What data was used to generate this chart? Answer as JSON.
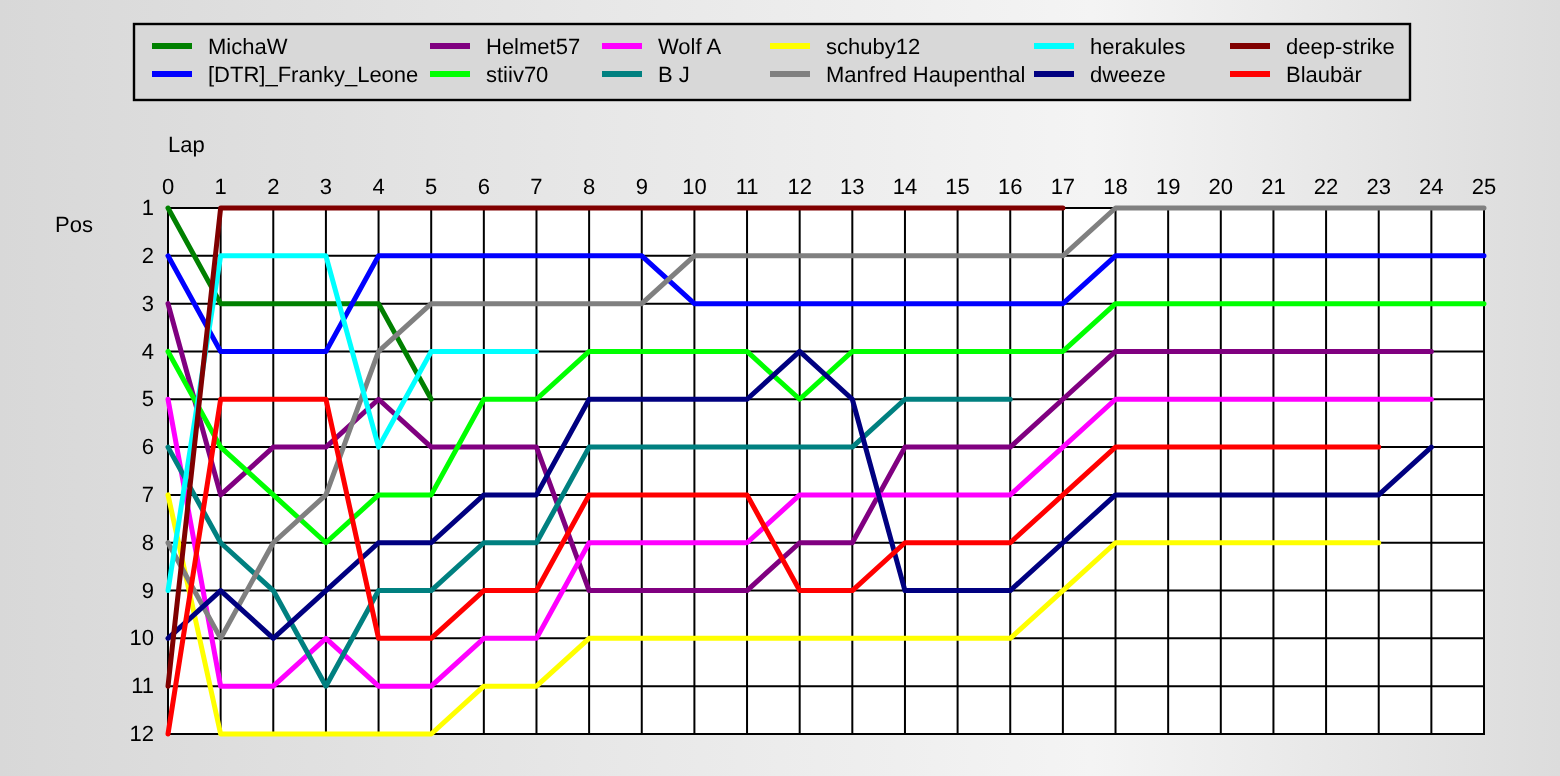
{
  "chart_data": {
    "type": "line",
    "xlabel": "Lap",
    "ylabel": "Pos",
    "x": [
      0,
      1,
      2,
      3,
      4,
      5,
      6,
      7,
      8,
      9,
      10,
      11,
      12,
      13,
      14,
      15,
      16,
      17,
      18,
      19,
      20,
      21,
      22,
      23,
      24,
      25
    ],
    "xlim": [
      0,
      25
    ],
    "xticks": [
      0,
      1,
      2,
      3,
      4,
      5,
      6,
      7,
      8,
      9,
      10,
      11,
      12,
      13,
      14,
      15,
      16,
      17,
      18,
      19,
      20,
      21,
      22,
      23,
      24,
      25
    ],
    "ylim": [
      12,
      1
    ],
    "yticks": [
      1,
      2,
      3,
      4,
      5,
      6,
      7,
      8,
      9,
      10,
      11,
      12
    ],
    "grid": true,
    "legend": "top",
    "marker": "none",
    "line_style": "solid",
    "series": [
      {
        "name": "MichaW",
        "color": "#008000",
        "values": [
          1,
          3,
          3,
          3,
          3,
          5,
          null,
          null,
          null,
          null,
          null,
          null,
          null,
          null,
          null,
          null,
          null,
          null,
          null,
          null,
          null,
          null,
          null,
          null,
          null,
          null
        ]
      },
      {
        "name": "[DTR]_Franky_Leone",
        "color": "#0000ff",
        "values": [
          2,
          4,
          4,
          4,
          2,
          2,
          2,
          2,
          2,
          2,
          3,
          3,
          3,
          3,
          3,
          3,
          3,
          3,
          2,
          2,
          2,
          2,
          2,
          2,
          2,
          2
        ]
      },
      {
        "name": "Helmet57",
        "color": "#800080",
        "values": [
          3,
          7,
          6,
          6,
          5,
          6,
          6,
          6,
          9,
          9,
          9,
          9,
          8,
          8,
          6,
          6,
          6,
          5,
          4,
          4,
          4,
          4,
          4,
          4,
          4,
          null
        ]
      },
      {
        "name": "stiiv70",
        "color": "#00ff00",
        "values": [
          4,
          6,
          7,
          8,
          7,
          7,
          5,
          5,
          4,
          4,
          4,
          4,
          5,
          4,
          4,
          4,
          4,
          4,
          3,
          3,
          3,
          3,
          3,
          3,
          3,
          3
        ]
      },
      {
        "name": "Wolf A",
        "color": "#ff00ff",
        "values": [
          5,
          11,
          11,
          10,
          11,
          11,
          10,
          10,
          8,
          8,
          8,
          8,
          7,
          7,
          7,
          7,
          7,
          6,
          5,
          5,
          5,
          5,
          5,
          5,
          5,
          null
        ]
      },
      {
        "name": "B J",
        "color": "#008080",
        "values": [
          6,
          8,
          9,
          11,
          9,
          9,
          8,
          8,
          6,
          6,
          6,
          6,
          6,
          6,
          5,
          5,
          5,
          null,
          null,
          null,
          null,
          null,
          null,
          null,
          null,
          null
        ]
      },
      {
        "name": "schuby12",
        "color": "#ffff00",
        "values": [
          7,
          12,
          12,
          12,
          12,
          12,
          11,
          11,
          10,
          10,
          10,
          10,
          10,
          10,
          10,
          10,
          10,
          9,
          8,
          8,
          8,
          8,
          8,
          8,
          null,
          null
        ]
      },
      {
        "name": "Manfred Haupenthal",
        "color": "#808080",
        "values": [
          8,
          10,
          8,
          7,
          4,
          3,
          3,
          3,
          3,
          3,
          2,
          2,
          2,
          2,
          2,
          2,
          2,
          2,
          1,
          1,
          1,
          1,
          1,
          1,
          1,
          1
        ]
      },
      {
        "name": "herakules",
        "color": "#00ffff",
        "values": [
          9,
          2,
          2,
          2,
          6,
          4,
          4,
          4,
          null,
          null,
          null,
          null,
          null,
          null,
          null,
          null,
          null,
          null,
          null,
          null,
          null,
          null,
          null,
          null,
          null,
          null
        ]
      },
      {
        "name": "dweeze",
        "color": "#000080",
        "values": [
          10,
          9,
          10,
          9,
          8,
          8,
          7,
          7,
          5,
          5,
          5,
          5,
          4,
          5,
          9,
          9,
          9,
          8,
          7,
          7,
          7,
          7,
          7,
          7,
          6,
          null
        ]
      },
      {
        "name": "deep-strike",
        "color": "#800000",
        "values": [
          11,
          1,
          1,
          1,
          1,
          1,
          1,
          1,
          1,
          1,
          1,
          1,
          1,
          1,
          1,
          1,
          1,
          1,
          null,
          null,
          null,
          null,
          null,
          null,
          null,
          null
        ]
      },
      {
        "name": "Blaubär",
        "color": "#ff0000",
        "values": [
          12,
          5,
          5,
          5,
          10,
          10,
          9,
          9,
          7,
          7,
          7,
          7,
          9,
          9,
          8,
          8,
          8,
          7,
          6,
          6,
          6,
          6,
          6,
          6,
          null,
          null
        ]
      }
    ]
  }
}
